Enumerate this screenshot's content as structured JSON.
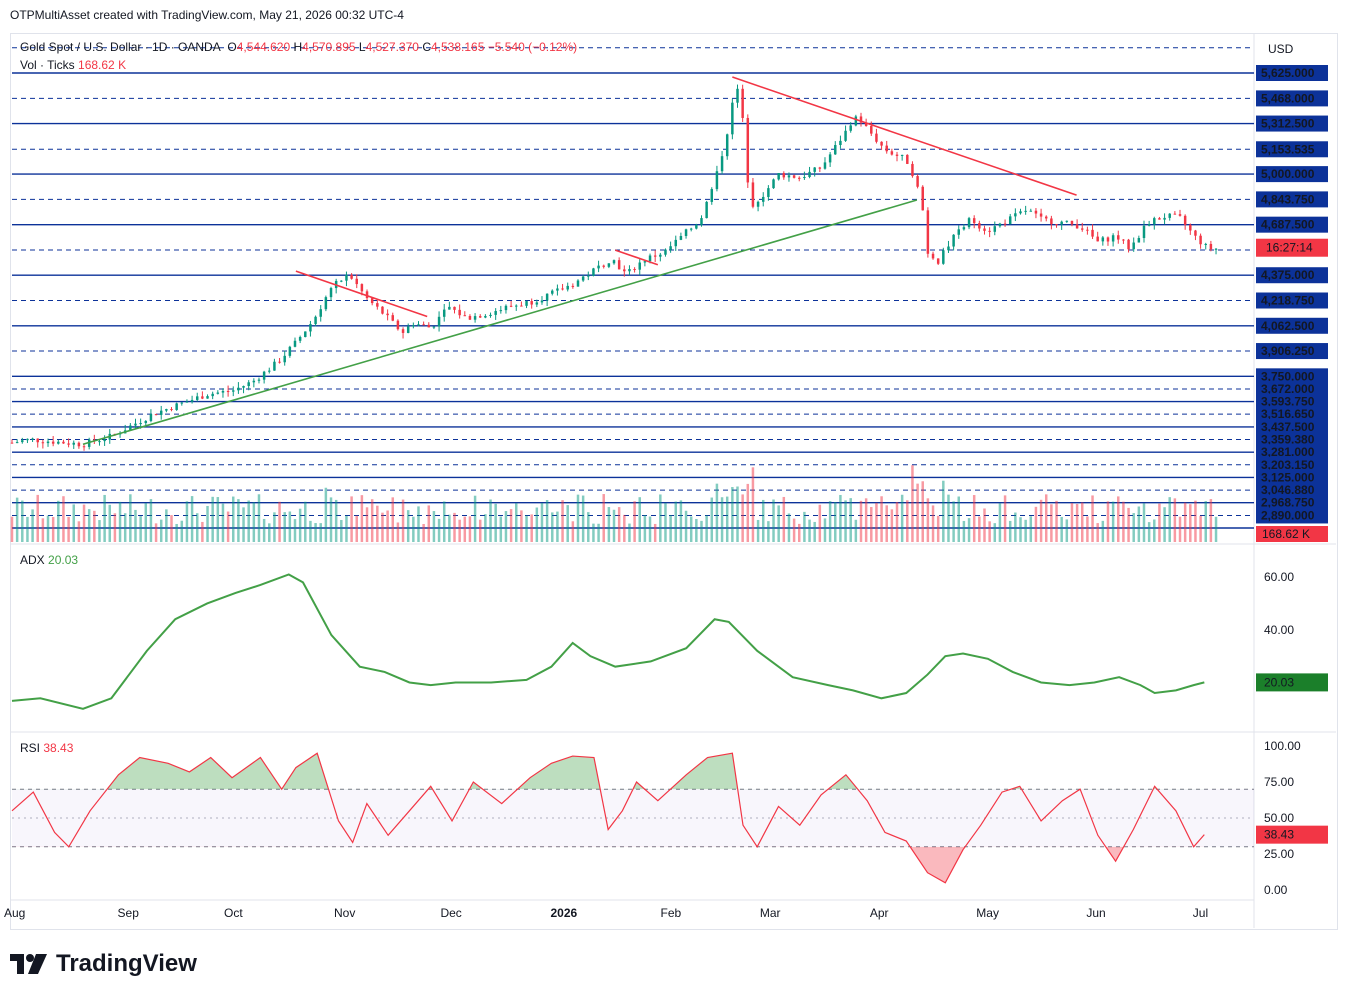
{
  "header": {
    "attribution": "OTPMultiAsset created with TradingView.com, May 21, 2026 00:32 UTC-4"
  },
  "legend": {
    "symbol": "Gold Spot / U.S. Dollar · 1D · OANDA",
    "open_label": "O",
    "open": "4,544.620",
    "high_label": "H",
    "high": "4,570.895",
    "low_label": "L",
    "low": "4,527.370",
    "close_label": "C",
    "close": "4,538.165",
    "change": "−5.540 (−0.12%)",
    "vol_label": "Vol · Ticks",
    "vol_value": "168.62 K"
  },
  "currency": "USD",
  "price_badge": "16:27:14",
  "vol_badge": "168.62 K",
  "adx": {
    "label": "ADX",
    "value": "20.03"
  },
  "rsi": {
    "label": "RSI",
    "value": "38.43"
  },
  "brand": {
    "name": "TradingView"
  },
  "colors": {
    "up": "#089981",
    "down": "#f23645",
    "level": "#0c3299",
    "adx": "#43a047",
    "rsi": "#f23645"
  },
  "chart_data": [
    {
      "type": "candlestick",
      "title": "Gold Spot / U.S. Dollar · 1D · OANDA",
      "x_tick_labels": [
        "Aug",
        "Sep",
        "Oct",
        "Nov",
        "Dec",
        "2026",
        "Feb",
        "Mar",
        "Apr",
        "May",
        "Jun",
        "Jul"
      ],
      "y_tick_labels": [
        "5,625.000",
        "5,468.000",
        "5,312.500",
        "5,153.535",
        "5,000.000",
        "4,843.750",
        "4,687.500",
        "4,375.000",
        "4,218.750",
        "4,062.500",
        "3,906.250",
        "3,750.000",
        "3,672.000",
        "3,593.750",
        "3,516.650",
        "3,437.500",
        "3,359.380",
        "3,281.000",
        "3,203.150",
        "3,125.000",
        "3,046.880",
        "2,968.750",
        "2,890.000"
      ],
      "solid_levels": [
        5625,
        5312.5,
        5000,
        4687.5,
        4375,
        4062.5,
        3750,
        3593.75,
        3437.5,
        3281,
        3125,
        2968.75,
        2812.5
      ],
      "dashed_levels": [
        5781,
        5468,
        5153.535,
        4843.75,
        4531.25,
        4218.75,
        3906.25,
        3672,
        3516.65,
        3359.38,
        3203.15,
        3046.88,
        2890
      ],
      "trendlines": [
        {
          "color": "red",
          "from": [
            "Oct 20",
            4400
          ],
          "to": [
            "Nov 26",
            4120
          ]
        },
        {
          "color": "red",
          "from": [
            "Jan 28",
            5600
          ],
          "to": [
            "Jun 1",
            4870
          ]
        },
        {
          "color": "red",
          "from": [
            "Dec 26",
            4530
          ],
          "to": [
            "Jan 9",
            4440
          ]
        },
        {
          "color": "green",
          "from": [
            "Aug 22",
            3330
          ],
          "to": [
            "Mar 18",
            4840
          ]
        }
      ],
      "ohlc_shape": [
        [
          0,
          3340
        ],
        [
          5,
          3360
        ],
        [
          10,
          3350
        ],
        [
          20,
          3330
        ],
        [
          28,
          3380
        ],
        [
          40,
          3520
        ],
        [
          55,
          3640
        ],
        [
          62,
          3660
        ],
        [
          68,
          3720
        ],
        [
          75,
          3840
        ],
        [
          80,
          3960
        ],
        [
          85,
          4100
        ],
        [
          90,
          4300
        ],
        [
          95,
          4380
        ],
        [
          100,
          4230
        ],
        [
          105,
          4130
        ],
        [
          110,
          4020
        ],
        [
          113,
          4080
        ],
        [
          118,
          4050
        ],
        [
          123,
          4180
        ],
        [
          128,
          4110
        ],
        [
          134,
          4140
        ],
        [
          140,
          4180
        ],
        [
          146,
          4210
        ],
        [
          152,
          4260
        ],
        [
          158,
          4320
        ],
        [
          165,
          4420
        ],
        [
          169,
          4480
        ],
        [
          173,
          4380
        ],
        [
          178,
          4470
        ],
        [
          184,
          4520
        ],
        [
          188,
          4600
        ],
        [
          194,
          4720
        ],
        [
          198,
          4950
        ],
        [
          201,
          5200
        ],
        [
          203,
          5430
        ],
        [
          205,
          5560
        ],
        [
          208,
          4800
        ],
        [
          212,
          4880
        ],
        [
          216,
          5000
        ],
        [
          222,
          4980
        ],
        [
          228,
          5040
        ],
        [
          233,
          5200
        ],
        [
          238,
          5360
        ],
        [
          241,
          5280
        ],
        [
          246,
          5150
        ],
        [
          252,
          5090
        ],
        [
          256,
          4900
        ],
        [
          258,
          4520
        ],
        [
          261,
          4460
        ],
        [
          265,
          4600
        ],
        [
          270,
          4720
        ],
        [
          275,
          4650
        ],
        [
          281,
          4720
        ],
        [
          286,
          4780
        ],
        [
          290,
          4720
        ],
        [
          296,
          4700
        ],
        [
          301,
          4680
        ],
        [
          306,
          4580
        ],
        [
          311,
          4620
        ],
        [
          315,
          4540
        ],
        [
          320,
          4700
        ],
        [
          325,
          4740
        ],
        [
          329,
          4730
        ],
        [
          333,
          4620
        ],
        [
          337,
          4540
        ],
        [
          340,
          4538
        ]
      ],
      "volume": {
        "label": "Vol · Ticks",
        "last": "168.62 K"
      }
    },
    {
      "type": "line",
      "title": "ADX",
      "y_tick_labels": [
        "60.00",
        "40.00",
        "20.00"
      ],
      "ylim": [
        5,
        68
      ],
      "series": [
        {
          "name": "ADX",
          "last": 20.03,
          "points": [
            [
              0,
              13
            ],
            [
              8,
              14
            ],
            [
              20,
              10
            ],
            [
              28,
              14
            ],
            [
              38,
              32
            ],
            [
              46,
              44
            ],
            [
              55,
              50
            ],
            [
              63,
              54
            ],
            [
              70,
              57
            ],
            [
              78,
              61
            ],
            [
              82,
              58
            ],
            [
              90,
              38
            ],
            [
              98,
              26
            ],
            [
              105,
              24
            ],
            [
              112,
              20
            ],
            [
              118,
              19
            ],
            [
              125,
              20
            ],
            [
              135,
              20
            ],
            [
              145,
              21
            ],
            [
              152,
              26
            ],
            [
              158,
              35
            ],
            [
              163,
              30
            ],
            [
              170,
              26
            ],
            [
              180,
              28
            ],
            [
              190,
              33
            ],
            [
              198,
              44
            ],
            [
              202,
              43
            ],
            [
              210,
              32
            ],
            [
              220,
              22
            ],
            [
              230,
              19
            ],
            [
              237,
              17
            ],
            [
              245,
              14
            ],
            [
              252,
              16
            ],
            [
              258,
              23
            ],
            [
              263,
              30
            ],
            [
              268,
              31
            ],
            [
              275,
              29
            ],
            [
              282,
              24
            ],
            [
              290,
              20
            ],
            [
              298,
              19
            ],
            [
              305,
              20
            ],
            [
              312,
              22
            ],
            [
              318,
              19
            ],
            [
              322,
              16
            ],
            [
              328,
              17
            ],
            [
              333,
              19
            ],
            [
              336,
              20.03
            ]
          ]
        }
      ]
    },
    {
      "type": "line",
      "title": "RSI",
      "y_tick_labels": [
        "100.00",
        "75.00",
        "50.00",
        "25.00",
        "0.00"
      ],
      "ylim": [
        0,
        100
      ],
      "bands": [
        30,
        70
      ],
      "series": [
        {
          "name": "RSI",
          "last": 38.43,
          "points": [
            [
              0,
              55
            ],
            [
              6,
              68
            ],
            [
              12,
              40
            ],
            [
              16,
              30
            ],
            [
              22,
              55
            ],
            [
              30,
              80
            ],
            [
              36,
              92
            ],
            [
              44,
              88
            ],
            [
              50,
              82
            ],
            [
              56,
              92
            ],
            [
              62,
              78
            ],
            [
              70,
              92
            ],
            [
              76,
              70
            ],
            [
              80,
              85
            ],
            [
              86,
              95
            ],
            [
              92,
              48
            ],
            [
              96,
              33
            ],
            [
              100,
              60
            ],
            [
              106,
              38
            ],
            [
              112,
              55
            ],
            [
              118,
              72
            ],
            [
              124,
              48
            ],
            [
              130,
              75
            ],
            [
              138,
              60
            ],
            [
              146,
              78
            ],
            [
              152,
              88
            ],
            [
              158,
              93
            ],
            [
              164,
              92
            ],
            [
              168,
              42
            ],
            [
              172,
              55
            ],
            [
              176,
              75
            ],
            [
              182,
              62
            ],
            [
              190,
              80
            ],
            [
              196,
              92
            ],
            [
              203,
              95
            ],
            [
              206,
              45
            ],
            [
              210,
              30
            ],
            [
              216,
              58
            ],
            [
              222,
              45
            ],
            [
              228,
              66
            ],
            [
              235,
              80
            ],
            [
              241,
              62
            ],
            [
              246,
              40
            ],
            [
              252,
              34
            ],
            [
              258,
              12
            ],
            [
              263,
              5
            ],
            [
              268,
              28
            ],
            [
              273,
              45
            ],
            [
              279,
              68
            ],
            [
              284,
              72
            ],
            [
              290,
              48
            ],
            [
              296,
              62
            ],
            [
              301,
              70
            ],
            [
              306,
              38
            ],
            [
              311,
              20
            ],
            [
              316,
              42
            ],
            [
              322,
              72
            ],
            [
              328,
              55
            ],
            [
              333,
              30
            ],
            [
              336,
              38.43
            ]
          ]
        }
      ]
    }
  ]
}
